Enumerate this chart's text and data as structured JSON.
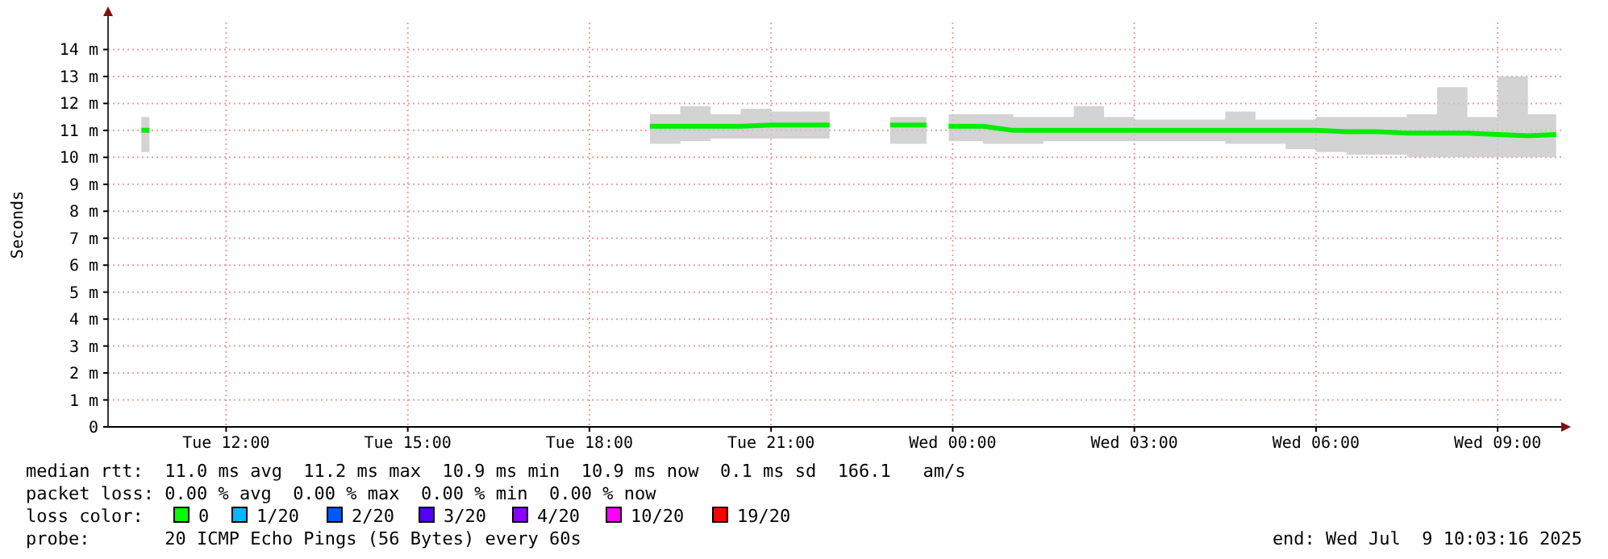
{
  "chart_data": {
    "type": "line",
    "ylabel": "Seconds",
    "grid": true,
    "xlim": [
      "2025-07-08T10:03",
      "2025-07-09T10:03"
    ],
    "ylim": [
      0,
      15
    ],
    "xticks": [
      {
        "value": "2025-07-08T12:00",
        "label": "Tue 12:00"
      },
      {
        "value": "2025-07-08T15:00",
        "label": "Tue 15:00"
      },
      {
        "value": "2025-07-08T18:00",
        "label": "Tue 18:00"
      },
      {
        "value": "2025-07-08T21:00",
        "label": "Tue 21:00"
      },
      {
        "value": "2025-07-09T00:00",
        "label": "Wed 00:00"
      },
      {
        "value": "2025-07-09T03:00",
        "label": "Wed 03:00"
      },
      {
        "value": "2025-07-09T06:00",
        "label": "Wed 06:00"
      },
      {
        "value": "2025-07-09T09:00",
        "label": "Wed 09:00"
      }
    ],
    "yticks": [
      {
        "value": 0,
        "label": "0"
      },
      {
        "value": 1,
        "label": "1 m"
      },
      {
        "value": 2,
        "label": "2 m"
      },
      {
        "value": 3,
        "label": "3 m"
      },
      {
        "value": 4,
        "label": "4 m"
      },
      {
        "value": 5,
        "label": "5 m"
      },
      {
        "value": 6,
        "label": "6 m"
      },
      {
        "value": 7,
        "label": "7 m"
      },
      {
        "value": 8,
        "label": "8 m"
      },
      {
        "value": 9,
        "label": "9 m"
      },
      {
        "value": 10,
        "label": "10 m"
      },
      {
        "value": 11,
        "label": "11 m"
      },
      {
        "value": 12,
        "label": "12 m"
      },
      {
        "value": 13,
        "label": "13 m"
      },
      {
        "value": 14,
        "label": "14 m"
      }
    ],
    "series": [
      {
        "color": "#00ee00",
        "x": [
          "2025-07-08T10:36",
          "2025-07-08T10:44",
          "2025-07-08T15:00",
          "2025-07-08T19:00",
          "2025-07-08T19:30",
          "2025-07-08T20:00",
          "2025-07-08T20:30",
          "2025-07-08T21:00",
          "2025-07-08T21:30",
          "2025-07-08T21:58",
          "2025-07-08T22:24",
          "2025-07-08T22:58",
          "2025-07-08T23:34",
          "2025-07-08T23:45",
          "2025-07-08T23:56",
          "2025-07-09T00:30",
          "2025-07-09T01:00",
          "2025-07-09T01:30",
          "2025-07-09T02:00",
          "2025-07-09T02:30",
          "2025-07-09T03:00",
          "2025-07-09T03:30",
          "2025-07-09T04:00",
          "2025-07-09T04:30",
          "2025-07-09T05:00",
          "2025-07-09T05:30",
          "2025-07-09T06:00",
          "2025-07-09T06:30",
          "2025-07-09T07:00",
          "2025-07-09T07:30",
          "2025-07-09T08:00",
          "2025-07-09T08:30",
          "2025-07-09T09:00",
          "2025-07-09T09:30",
          "2025-07-09T09:58"
        ],
        "values": [
          11.0,
          11.0,
          null,
          11.15,
          11.15,
          11.15,
          11.15,
          11.2,
          11.2,
          11.2,
          null,
          11.2,
          11.2,
          null,
          11.15,
          11.15,
          11.0,
          11.0,
          11.0,
          11.0,
          11.0,
          11.0,
          11.0,
          11.0,
          11.0,
          11.0,
          11.0,
          10.95,
          10.95,
          10.9,
          10.9,
          10.9,
          10.85,
          10.8,
          10.85
        ],
        "lower": [
          10.2,
          10.2,
          null,
          10.5,
          10.6,
          10.7,
          10.7,
          10.7,
          10.7,
          10.8,
          null,
          10.5,
          10.6,
          null,
          10.6,
          10.5,
          10.5,
          10.6,
          10.6,
          10.6,
          10.6,
          10.6,
          10.6,
          10.5,
          10.5,
          10.3,
          10.2,
          10.1,
          10.1,
          10.0,
          10.0,
          10.0,
          10.0,
          10.0,
          10.0
        ],
        "upper": [
          11.5,
          11.5,
          null,
          11.6,
          11.9,
          11.6,
          11.8,
          11.7,
          11.7,
          11.6,
          null,
          11.5,
          11.5,
          null,
          11.6,
          11.6,
          11.5,
          11.5,
          11.9,
          11.5,
          11.4,
          11.4,
          11.4,
          11.7,
          11.4,
          11.4,
          11.5,
          11.5,
          11.5,
          11.6,
          12.6,
          11.5,
          13.0,
          11.6,
          11.5
        ]
      }
    ],
    "annotations": [
      "median rtt:  11.0 ms avg  11.2 ms max  10.9 ms min  10.9 ms now  0.1 ms sd  166.1   am/s",
      "packet loss: 0.00 % avg  0.00 % max  0.00 % min  0.00 % now",
      "loss color:",
      "0",
      "1/20",
      "2/20",
      "3/20",
      "4/20",
      "10/20",
      "19/20",
      "probe:       20 ICMP Echo Pings (56 Bytes) every 60s",
      "end: Wed Jul  9 10:03:16 2025"
    ]
  }
}
